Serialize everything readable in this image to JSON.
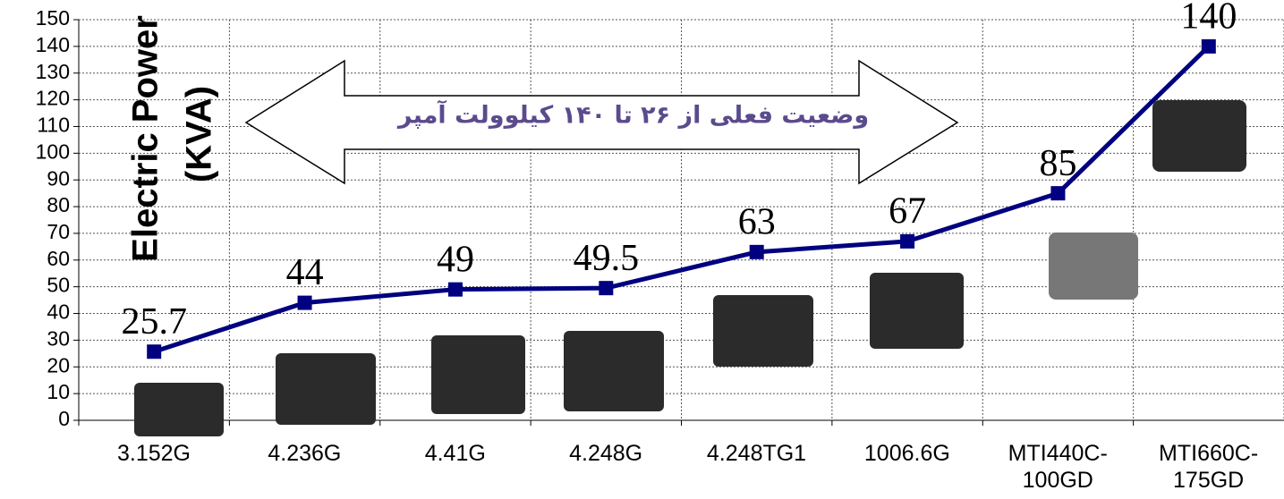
{
  "chart_data": {
    "type": "line",
    "ylabel": [
      "Electric Power",
      "(KVA)"
    ],
    "annotation": "وضعیت فعلی از ۲۶ تا ۱۴۰ کیلوولت آمپر",
    "categories": [
      "3.152G",
      "4.236G",
      "4.41G",
      "4.248G",
      "4.248TG1",
      "1006.6G",
      "MTI440C-\n100GD",
      "MTI660C-\n175GD"
    ],
    "series": [
      {
        "name": "Electric Power",
        "color": "#000080",
        "values": [
          25.7,
          44,
          49,
          49.5,
          63,
          67,
          85,
          140
        ]
      }
    ],
    "ylim": [
      0,
      150
    ],
    "yticks": [
      0,
      10,
      20,
      30,
      40,
      50,
      60,
      70,
      80,
      90,
      100,
      110,
      120,
      130,
      140,
      150
    ],
    "grid": true
  }
}
